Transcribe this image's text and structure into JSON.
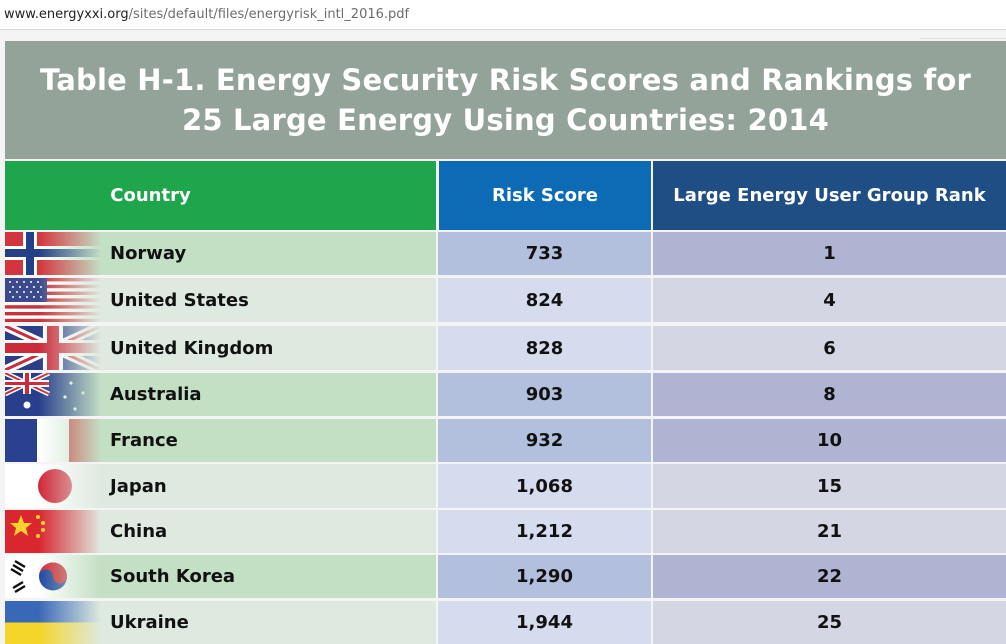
{
  "browser": {
    "url_host": "www.energyxxi.org",
    "url_path": "/sites/default/files/energyrisk_intl_2016.pdf"
  },
  "table": {
    "title_line1": "Table H-1. Energy Security Risk Scores and Rankings for",
    "title_line2": "25 Large Energy Using Countries: 2014",
    "headers": {
      "country": "Country",
      "score": "Risk Score",
      "rank": "Large Energy User Group Rank"
    },
    "colors": {
      "title_band": "#94a39a",
      "country_header": "#1fa64d",
      "score_header": "#0c6bb4",
      "rank_header": "#1f4e85"
    },
    "rows": [
      {
        "country": "Norway",
        "score": "733",
        "rank": "1",
        "flag_icon": "norway-flag-icon"
      },
      {
        "country": "United States",
        "score": "824",
        "rank": "4",
        "flag_icon": "usa-flag-icon"
      },
      {
        "country": "United Kingdom",
        "score": "828",
        "rank": "6",
        "flag_icon": "uk-flag-icon"
      },
      {
        "country": "Australia",
        "score": "903",
        "rank": "8",
        "flag_icon": "australia-flag-icon"
      },
      {
        "country": "France",
        "score": "932",
        "rank": "10",
        "flag_icon": "france-flag-icon"
      },
      {
        "country": "Japan",
        "score": "1,068",
        "rank": "15",
        "flag_icon": "japan-flag-icon"
      },
      {
        "country": "China",
        "score": "1,212",
        "rank": "21",
        "flag_icon": "china-flag-icon"
      },
      {
        "country": "South Korea",
        "score": "1,290",
        "rank": "22",
        "flag_icon": "south-korea-flag-icon"
      },
      {
        "country": "Ukraine",
        "score": "1,944",
        "rank": "25",
        "flag_icon": "ukraine-flag-icon"
      }
    ]
  }
}
